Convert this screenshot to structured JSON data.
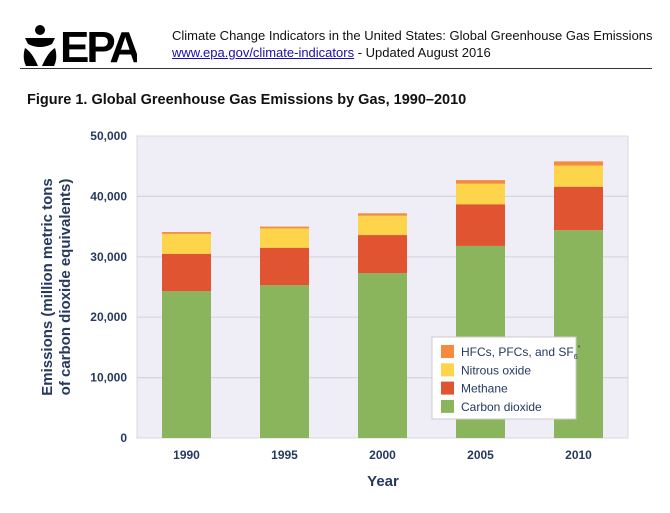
{
  "header": {
    "logo_text": "EPA",
    "line1": "Climate Change Indicators in the United States: Global Greenhouse Gas Emissions",
    "link": "www.epa.gov/climate-indicators",
    "line2_suffix": " - Updated August 2016"
  },
  "chart_data": {
    "type": "bar",
    "stacked": true,
    "title": "Figure 1. Global Greenhouse Gas Emissions by Gas, 1990–2010",
    "xlabel": "Year",
    "ylabel_line1": "Emissions (million metric tons",
    "ylabel_line2": "of carbon dioxide equivalents)",
    "ylim": [
      0,
      50000
    ],
    "yticks": [
      "0",
      "10,000",
      "20,000",
      "30,000",
      "40,000",
      "50,000"
    ],
    "ytick_values": [
      0,
      10000,
      20000,
      30000,
      40000,
      50000
    ],
    "grid": true,
    "legend_position": "bottom-right",
    "categories": [
      "1990",
      "1995",
      "2000",
      "2005",
      "2010"
    ],
    "series": [
      {
        "name": "Carbon dioxide",
        "color": "#8ab55d",
        "values": [
          24300,
          25300,
          27300,
          31800,
          34400
        ]
      },
      {
        "name": "Methane",
        "color": "#e05431",
        "values": [
          6200,
          6200,
          6300,
          6900,
          7200
        ]
      },
      {
        "name": "Nitrous oxide",
        "color": "#fed54a",
        "values": [
          3300,
          3200,
          3200,
          3400,
          3500
        ]
      },
      {
        "name": "HFCs, PFCs, and SF6*",
        "legend_main": "HFCs, PFCs, and SF",
        "legend_sub": "6",
        "legend_sup": "*",
        "color": "#f58b3f",
        "values": [
          300,
          300,
          400,
          600,
          700
        ]
      }
    ],
    "plot_background": "#efedf6"
  }
}
